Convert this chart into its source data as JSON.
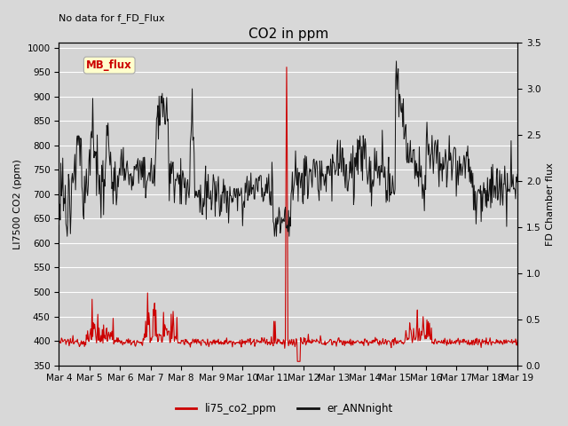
{
  "title": "CO2 in ppm",
  "top_left_text": "No data for f_FD_Flux",
  "ylabel_left": "LI7500 CO2 (ppm)",
  "ylabel_right": "FD Chamber flux",
  "ylim_left": [
    350,
    1010
  ],
  "ylim_right": [
    0.0,
    3.5
  ],
  "yticks_left": [
    350,
    400,
    450,
    500,
    550,
    600,
    650,
    700,
    750,
    800,
    850,
    900,
    950,
    1000
  ],
  "yticks_right": [
    0.0,
    0.5,
    1.0,
    1.5,
    2.0,
    2.5,
    3.0,
    3.5
  ],
  "xticklabels": [
    "Mar 4",
    "Mar 5",
    "Mar 6",
    "Mar 7",
    "Mar 8",
    "Mar 9",
    "Mar 10",
    "Mar 11",
    "Mar 12",
    "Mar 13",
    "Mar 14",
    "Mar 15",
    "Mar 16",
    "Mar 17",
    "Mar 18",
    "Mar 19"
  ],
  "legend_entries": [
    "li75_co2_ppm",
    "er_ANNnight"
  ],
  "legend_colors": [
    "#cc0000",
    "#111111"
  ],
  "line_red_color": "#cc0000",
  "line_black_color": "#111111",
  "bg_color": "#d8d8d8",
  "plot_bg_color": "#d4d4d4",
  "grid_color": "#ffffff",
  "mb_flux_box_facecolor": "#ffffcc",
  "mb_flux_box_edgecolor": "#aaaaaa",
  "mb_flux_text_color": "#cc0000",
  "title_fontsize": 11,
  "label_fontsize": 8,
  "tick_fontsize": 7.5,
  "n_points": 720
}
